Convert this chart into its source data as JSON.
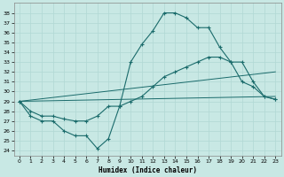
{
  "xlabel": "Humidex (Indice chaleur)",
  "ylabel": "",
  "xlim": [
    -0.5,
    23.5
  ],
  "ylim": [
    23.5,
    39.0
  ],
  "xticks": [
    0,
    1,
    2,
    3,
    4,
    5,
    6,
    7,
    8,
    9,
    10,
    11,
    12,
    13,
    14,
    15,
    16,
    17,
    18,
    19,
    20,
    21,
    22,
    23
  ],
  "yticks": [
    24,
    25,
    26,
    27,
    28,
    29,
    30,
    31,
    32,
    33,
    34,
    35,
    36,
    37,
    38
  ],
  "bg_color": "#c8e8e4",
  "grid_color": "#b0d8d4",
  "line_color": "#1a6b6b",
  "line1_x": [
    0,
    1,
    2,
    3,
    4,
    5,
    6,
    7,
    8,
    9,
    10,
    11,
    12,
    13,
    14,
    15,
    16,
    17,
    18,
    19,
    20,
    21,
    22,
    23
  ],
  "line1_y": [
    29.0,
    27.5,
    27.0,
    27.0,
    26.0,
    25.5,
    25.5,
    24.2,
    25.2,
    28.5,
    33.0,
    34.8,
    36.2,
    38.0,
    38.0,
    37.5,
    36.5,
    36.5,
    34.5,
    33.0,
    31.0,
    30.5,
    29.5,
    29.2
  ],
  "line2_x": [
    0,
    1,
    2,
    3,
    4,
    5,
    6,
    7,
    8,
    9,
    10,
    11,
    12,
    13,
    14,
    15,
    16,
    17,
    18,
    19,
    20,
    21,
    22,
    23
  ],
  "line2_y": [
    29.0,
    28.0,
    27.5,
    27.5,
    27.2,
    27.0,
    27.0,
    27.5,
    28.5,
    28.5,
    29.0,
    29.5,
    30.5,
    31.5,
    32.0,
    32.5,
    33.0,
    33.5,
    33.5,
    33.0,
    33.0,
    31.0,
    29.5,
    29.2
  ],
  "line3_x": [
    0,
    23
  ],
  "line3_y": [
    29.0,
    32.0
  ],
  "line4_x": [
    0,
    23
  ],
  "line4_y": [
    29.0,
    29.5
  ]
}
